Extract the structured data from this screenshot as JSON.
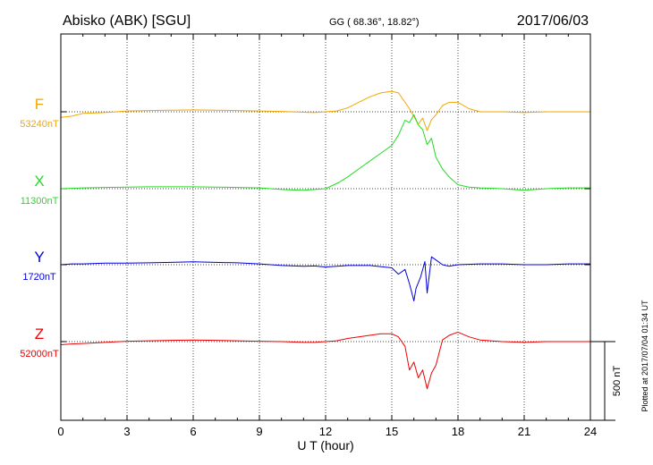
{
  "header": {
    "station": "Abisko (ABK)  [SGU]",
    "coords": "GG ( 68.36°,  18.82°)",
    "date": "2017/06/03"
  },
  "footer": {
    "plotted_at": "Plotted at 2017/07/04 01:34 UT"
  },
  "chart_data": {
    "type": "line",
    "title": "",
    "xlabel": "U T (hour)",
    "ylabel": "",
    "xlim": [
      0,
      24
    ],
    "x_ticks": [
      0,
      3,
      6,
      9,
      12,
      15,
      18,
      21,
      24
    ],
    "x_tick_labels": [
      "0",
      "3",
      "6",
      "9",
      "12",
      "15",
      "18",
      "21",
      "24"
    ],
    "scale_bar": {
      "value_nT": 500,
      "label": "500 nT"
    },
    "grid": "dotted vertical every 3 h; dotted baseline per component",
    "series": [
      {
        "name": "F",
        "baseline_label": "53240nT",
        "baseline_nT": 53240,
        "color": "#f0a800",
        "x": [
          0,
          0.5,
          1,
          2,
          3,
          4,
          5,
          6,
          7,
          8,
          9,
          10,
          11,
          11.5,
          12,
          12.5,
          13,
          13.5,
          14,
          14.5,
          15,
          15.3,
          15.5,
          15.8,
          16,
          16.2,
          16.4,
          16.6,
          16.8,
          17,
          17.3,
          17.6,
          18,
          18.5,
          19,
          20,
          21,
          22,
          23,
          24
        ],
        "values": [
          -35,
          -28,
          -10,
          -5,
          5,
          8,
          10,
          12,
          10,
          8,
          5,
          2,
          -3,
          -5,
          0,
          5,
          25,
          60,
          95,
          120,
          130,
          120,
          80,
          20,
          -30,
          -80,
          -40,
          -120,
          -50,
          -20,
          40,
          60,
          60,
          20,
          0,
          0,
          -5,
          0,
          0,
          0
        ]
      },
      {
        "name": "X",
        "baseline_label": "11300nT",
        "baseline_nT": 11300,
        "color": "#22dd22",
        "x": [
          0,
          0.5,
          1,
          2,
          3,
          4,
          5,
          6,
          7,
          8,
          9,
          9.5,
          10,
          10.5,
          11,
          11.5,
          12,
          12.3,
          12.6,
          13,
          13.5,
          14,
          14.5,
          15,
          15.3,
          15.6,
          15.8,
          16,
          16.2,
          16.4,
          16.6,
          16.8,
          17,
          17.3,
          17.6,
          18,
          18.5,
          19,
          20,
          21,
          22,
          23,
          24
        ],
        "values": [
          0,
          2,
          5,
          8,
          10,
          12,
          12,
          12,
          10,
          8,
          5,
          0,
          -5,
          -8,
          -10,
          -5,
          0,
          20,
          40,
          75,
          125,
          175,
          225,
          275,
          340,
          435,
          420,
          470,
          405,
          375,
          280,
          320,
          200,
          125,
          75,
          25,
          10,
          5,
          0,
          -10,
          0,
          5,
          5
        ]
      },
      {
        "name": "Y",
        "baseline_label": "1720nT",
        "baseline_nT": 1720,
        "color": "#0000dd",
        "x": [
          0,
          0.5,
          1,
          2,
          3,
          4,
          5,
          6,
          7,
          8,
          9,
          10,
          11,
          11.5,
          12,
          12.5,
          13,
          14,
          15,
          15.3,
          15.6,
          15.8,
          16,
          16.1,
          16.3,
          16.5,
          16.6,
          16.8,
          17,
          17.3,
          17.6,
          18,
          19,
          20,
          21,
          22,
          23,
          24
        ],
        "values": [
          0,
          5,
          5,
          10,
          10,
          12,
          15,
          18,
          15,
          12,
          5,
          -5,
          -10,
          -8,
          -15,
          -10,
          -5,
          -5,
          -20,
          -60,
          -30,
          -120,
          -230,
          -150,
          -80,
          20,
          -180,
          50,
          30,
          0,
          -10,
          0,
          5,
          5,
          0,
          0,
          5,
          5
        ]
      },
      {
        "name": "Z",
        "baseline_label": "52000nT",
        "baseline_nT": 52000,
        "color": "#ee0000",
        "x": [
          0,
          0.5,
          1,
          2,
          3,
          4,
          5,
          6,
          7,
          8,
          9,
          10,
          11,
          11.5,
          12,
          12.5,
          13,
          13.5,
          14,
          14.5,
          15,
          15.3,
          15.6,
          15.8,
          16,
          16.2,
          16.4,
          16.6,
          16.8,
          17,
          17.3,
          17.6,
          18,
          18.5,
          19,
          20,
          21,
          22,
          23,
          24
        ],
        "values": [
          -20,
          -15,
          -12,
          -5,
          2,
          5,
          8,
          10,
          8,
          5,
          2,
          0,
          -5,
          -5,
          0,
          5,
          20,
          30,
          40,
          50,
          50,
          30,
          -30,
          -180,
          -130,
          -230,
          -180,
          -300,
          -200,
          -150,
          10,
          40,
          60,
          30,
          10,
          0,
          -5,
          0,
          0,
          0
        ]
      }
    ]
  }
}
